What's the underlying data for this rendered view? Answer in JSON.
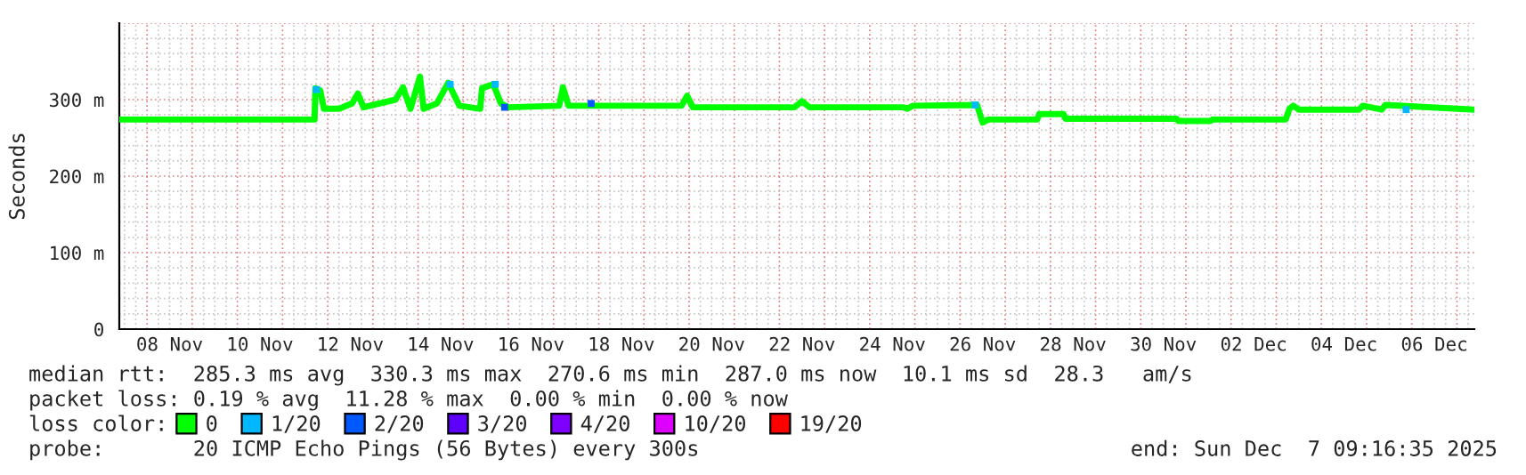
{
  "chart_data": {
    "type": "line",
    "ylabel": "Seconds",
    "legend_title": "loss color:",
    "legend": "bottom",
    "grid": true,
    "xlim": [
      "2025-11-07T09:16",
      "2025-12-07T09:16"
    ],
    "xticks": [
      {
        "value": "2025-11-08T12:00",
        "label": "08 Nov"
      },
      {
        "value": "2025-11-10T12:00",
        "label": "10 Nov"
      },
      {
        "value": "2025-11-12T12:00",
        "label": "12 Nov"
      },
      {
        "value": "2025-11-14T12:00",
        "label": "14 Nov"
      },
      {
        "value": "2025-11-16T12:00",
        "label": "16 Nov"
      },
      {
        "value": "2025-11-18T12:00",
        "label": "18 Nov"
      },
      {
        "value": "2025-11-20T12:00",
        "label": "20 Nov"
      },
      {
        "value": "2025-11-22T12:00",
        "label": "22 Nov"
      },
      {
        "value": "2025-11-24T12:00",
        "label": "24 Nov"
      },
      {
        "value": "2025-11-26T12:00",
        "label": "26 Nov"
      },
      {
        "value": "2025-11-28T12:00",
        "label": "28 Nov"
      },
      {
        "value": "2025-11-30T12:00",
        "label": "30 Nov"
      },
      {
        "value": "2025-12-02T12:00",
        "label": "02 Dec"
      },
      {
        "value": "2025-12-04T12:00",
        "label": "04 Dec"
      },
      {
        "value": "2025-12-06T12:00",
        "label": "06 Dec"
      }
    ],
    "ylim": [
      0,
      400
    ],
    "yticks": [
      {
        "value": 0,
        "label": "0"
      },
      {
        "value": 100,
        "label": "100 m"
      },
      {
        "value": 200,
        "label": "200 m"
      },
      {
        "value": 300,
        "label": "300 m"
      }
    ],
    "series": [
      {
        "name": "0",
        "color": "#00ff00",
        "x": [
          "2025-11-07T09:16",
          "2025-11-11T17:00",
          "2025-11-11T17:30",
          "2025-11-11T20:00",
          "2025-11-11T22:00",
          "2025-11-12T06:00",
          "2025-11-12T13:00",
          "2025-11-12T16:00",
          "2025-11-12T19:00",
          "2025-11-13T12:00",
          "2025-11-13T16:00",
          "2025-11-13T20:00",
          "2025-11-14T01:00",
          "2025-11-14T03:00",
          "2025-11-14T10:00",
          "2025-11-14T16:00",
          "2025-11-14T22:00",
          "2025-11-15T09:00",
          "2025-11-15T10:00",
          "2025-11-15T16:00",
          "2025-11-15T20:00",
          "2025-11-16T00:00",
          "2025-11-17T03:00",
          "2025-11-17T05:00",
          "2025-11-17T08:00",
          "2025-11-19T20:00",
          "2025-11-19T23:00",
          "2025-11-20T02:00",
          "2025-11-22T08:00",
          "2025-11-22T12:00",
          "2025-11-22T16:00",
          "2025-11-24T18:00",
          "2025-11-24T20:00",
          "2025-11-24T23:00",
          "2025-11-26T09:00",
          "2025-11-26T12:00",
          "2025-11-26T15:00",
          "2025-11-27T17:00",
          "2025-11-27T18:00",
          "2025-11-28T07:00",
          "2025-11-28T08:00",
          "2025-11-30T19:00",
          "2025-11-30T20:00",
          "2025-12-01T13:00",
          "2025-12-01T14:00",
          "2025-12-03T05:00",
          "2025-12-03T07:00",
          "2025-12-03T09:00",
          "2025-12-03T12:00",
          "2025-12-04T20:00",
          "2025-12-04T22:00",
          "2025-12-05T08:00",
          "2025-12-05T10:00",
          "2025-12-07T09:16"
        ],
        "values": [
          274,
          274,
          315,
          312,
          288,
          288,
          295,
          308,
          290,
          300,
          316,
          288,
          330,
          288,
          295,
          322,
          292,
          288,
          315,
          320,
          295,
          290,
          292,
          316,
          292,
          292,
          305,
          290,
          290,
          298,
          290,
          290,
          288,
          292,
          293,
          270,
          274,
          274,
          281,
          281,
          275,
          275,
          272,
          272,
          274,
          274,
          288,
          292,
          287,
          287,
          292,
          287,
          293,
          287
        ]
      },
      {
        "name": "1/20",
        "color": "#00b8ff",
        "type": "scatter",
        "marker": "square",
        "x": [
          "2025-11-11T18:00",
          "2025-11-14T17:00",
          "2025-11-15T17:00",
          "2025-11-26T08:00",
          "2025-12-05T21:00"
        ],
        "values": [
          313,
          320,
          320,
          293,
          287
        ]
      },
      {
        "name": "2/20",
        "color": "#0059ff",
        "type": "scatter",
        "marker": "square",
        "x": [
          "2025-11-15T22:00",
          "2025-11-17T20:00"
        ],
        "values": [
          290,
          295
        ]
      },
      {
        "name": "3/20",
        "color": "#5e00ff",
        "type": "scatter",
        "marker": "square"
      },
      {
        "name": "4/20",
        "color": "#7e00ff",
        "type": "scatter",
        "marker": "square"
      },
      {
        "name": "10/20",
        "color": "#dd00ff",
        "type": "scatter",
        "marker": "square"
      },
      {
        "name": "19/20",
        "color": "#ff0000",
        "type": "scatter",
        "marker": "square"
      }
    ],
    "annotations": [
      "median rtt:  285.3 ms avg  330.3 ms max  270.6 ms min  287.0 ms now  10.1 ms sd  28.3   am/s",
      "packet loss: 0.19 % avg  11.28 % max  0.00 % min  0.00 % now",
      "probe:       20 ICMP Echo Pings (56 Bytes) every 300s",
      "end: Sun Dec  7 09:16:35 2025"
    ]
  }
}
